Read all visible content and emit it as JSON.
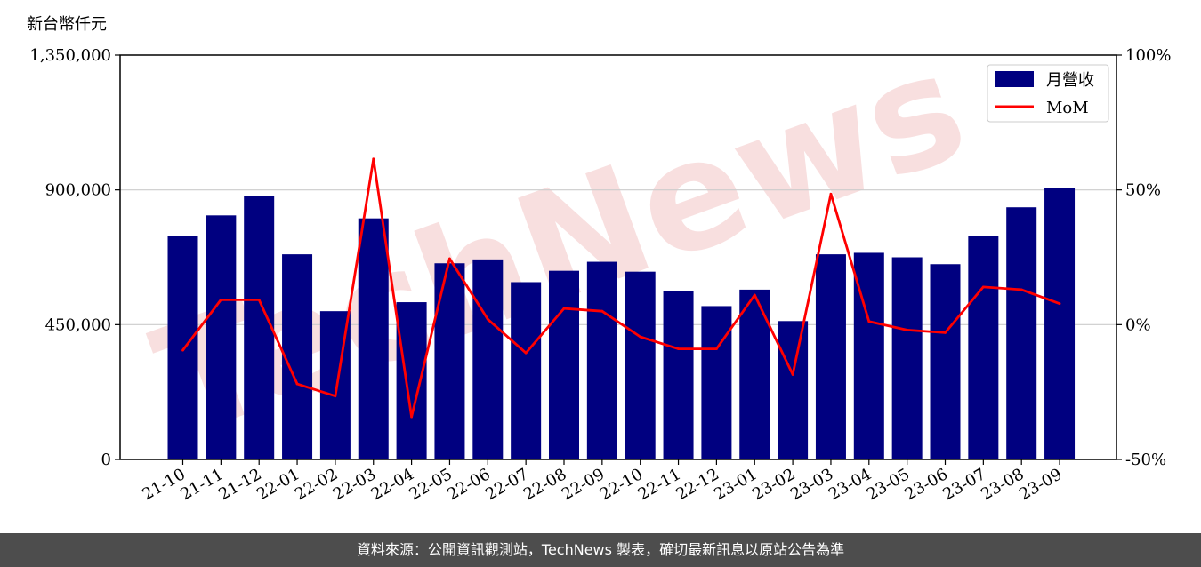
{
  "unit_label": "新台幣仟元",
  "footer_text": "資料來源：公開資訊觀測站，TechNews 製表，確切最新訊息以原站公告為準",
  "watermark_text": "TechNews",
  "colors": {
    "bar": "#000080",
    "line": "#ff0000",
    "grid": "#cccccc",
    "footer_bg": "#4d4d4d"
  },
  "chart_data": {
    "type": "bar+line",
    "categories": [
      "21-10",
      "21-11",
      "21-12",
      "22-01",
      "22-02",
      "22-03",
      "22-04",
      "22-05",
      "22-06",
      "22-07",
      "22-08",
      "22-09",
      "22-10",
      "22-11",
      "22-12",
      "23-01",
      "23-02",
      "23-03",
      "23-04",
      "23-05",
      "23-06",
      "23-07",
      "23-08",
      "23-09"
    ],
    "series": [
      {
        "name": "月營收",
        "type": "bar",
        "axis": "left",
        "values": [
          745000,
          815000,
          880000,
          685000,
          495000,
          805000,
          525000,
          655000,
          668000,
          592000,
          630000,
          660000,
          627000,
          562000,
          512000,
          567000,
          462000,
          685000,
          690000,
          675000,
          652000,
          745000,
          842000,
          905000
        ]
      },
      {
        "name": "MoM",
        "type": "line",
        "axis": "right",
        "values": [
          -9.5,
          9.2,
          9.2,
          -22.0,
          -26.5,
          61.5,
          -34.2,
          24.5,
          2.0,
          -10.5,
          6.0,
          5.0,
          -4.5,
          -9.0,
          -9.0,
          11.0,
          -18.5,
          48.5,
          1.2,
          -2.0,
          -3.0,
          14.0,
          13.0,
          7.8
        ]
      }
    ],
    "y_left": {
      "lim": [
        0,
        1350000
      ],
      "ticks": [
        0,
        450000,
        900000,
        1350000
      ],
      "tick_labels": [
        "0",
        "450,000",
        "900,000",
        "1,350,000"
      ]
    },
    "y_right": {
      "lim": [
        -50,
        100
      ],
      "ticks": [
        -50,
        0,
        50,
        100
      ],
      "tick_labels": [
        "-50%",
        "0%",
        "50%",
        "100%"
      ]
    },
    "grid": "horizontal",
    "legend_position": "top-right"
  }
}
